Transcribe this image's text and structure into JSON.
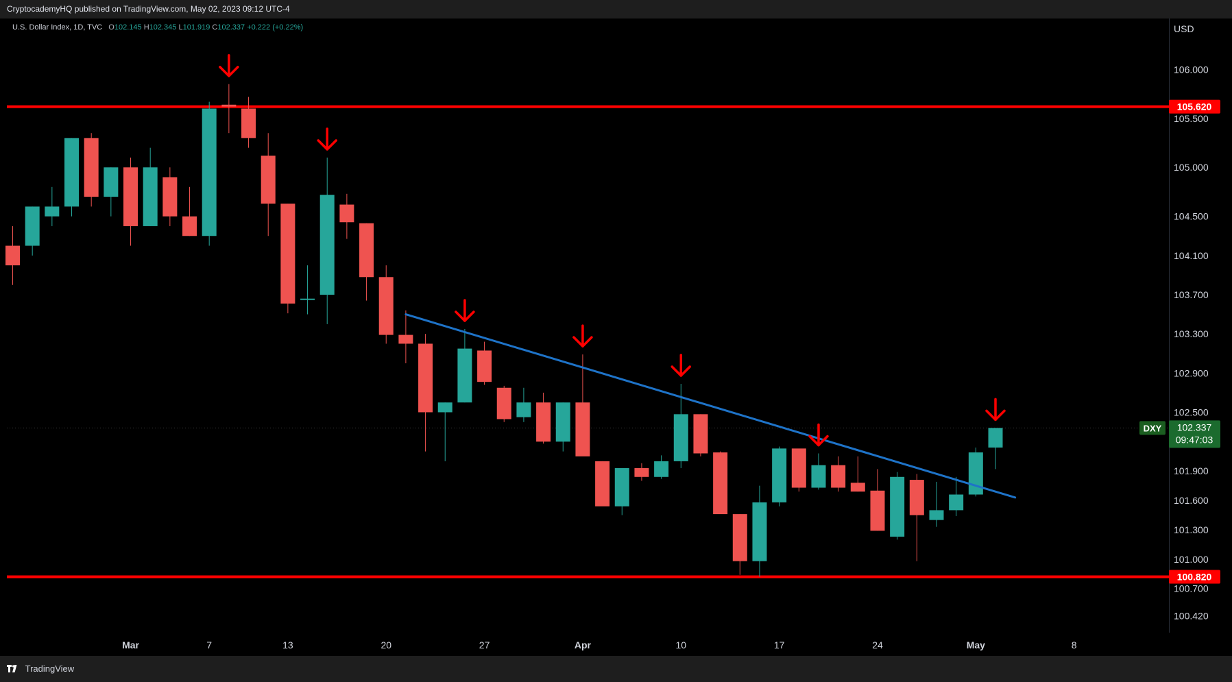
{
  "header": {
    "published": "CryptocademyHQ published on TradingView.com, May 02, 2023 09:12 UTC-4"
  },
  "legend": {
    "symbol": "U.S. Dollar Index, 1D, TVC",
    "open_label": "O",
    "open": "102.145",
    "high_label": "H",
    "high": "102.345",
    "low_label": "L",
    "low": "101.919",
    "close_label": "C",
    "close": "102.337",
    "change": "+0.222 (+0.22%)"
  },
  "footer": {
    "brand": "TradingView",
    "logo": "tv-logo-icon"
  },
  "colors": {
    "up": "#26a69a",
    "down": "#ef5350",
    "level": "#ff0000",
    "trend": "#1e73c8",
    "arrow": "#ff0000"
  },
  "chart_data": {
    "type": "candlestick",
    "currency": "USD",
    "ylim": [
      100.25,
      106.52
    ],
    "y_ticks": [
      106.0,
      105.5,
      105.0,
      104.5,
      104.1,
      103.7,
      103.3,
      102.9,
      102.5,
      101.9,
      101.6,
      101.3,
      101.0,
      100.7,
      100.42
    ],
    "y_tick_labels": [
      "106.000",
      "105.500",
      "105.000",
      "104.500",
      "104.100",
      "103.700",
      "103.300",
      "102.900",
      "102.500",
      "101.900",
      "101.600",
      "101.300",
      "101.000",
      "100.700",
      "100.420"
    ],
    "x_ticks": [
      {
        "label": "Mar",
        "index": 6
      },
      {
        "label": "7",
        "index": 10
      },
      {
        "label": "13",
        "index": 14
      },
      {
        "label": "20",
        "index": 19
      },
      {
        "label": "27",
        "index": 24
      },
      {
        "label": "Apr",
        "index": 29
      },
      {
        "label": "10",
        "index": 34
      },
      {
        "label": "17",
        "index": 39
      },
      {
        "label": "24",
        "index": 44
      },
      {
        "label": "May",
        "index": 49
      },
      {
        "label": "8",
        "index": 54
      }
    ],
    "candles": [
      [
        104.2,
        104.4,
        103.8,
        104.0
      ],
      [
        104.2,
        104.6,
        104.1,
        104.6
      ],
      [
        104.5,
        104.8,
        104.4,
        104.6
      ],
      [
        104.6,
        105.3,
        104.5,
        105.3
      ],
      [
        105.3,
        105.35,
        104.6,
        104.7
      ],
      [
        104.7,
        105.0,
        104.5,
        105.0
      ],
      [
        105.0,
        105.1,
        104.2,
        104.4
      ],
      [
        104.4,
        105.2,
        104.4,
        105.0
      ],
      [
        104.9,
        105.0,
        104.4,
        104.5
      ],
      [
        104.5,
        104.8,
        104.3,
        104.3
      ],
      [
        104.3,
        105.67,
        104.2,
        105.6
      ],
      [
        105.64,
        105.85,
        105.35,
        105.62
      ],
      [
        105.6,
        105.72,
        105.2,
        105.3
      ],
      [
        105.12,
        105.35,
        104.3,
        104.63
      ],
      [
        104.63,
        104.63,
        103.51,
        103.61
      ],
      [
        103.66,
        104.0,
        103.5,
        103.66
      ],
      [
        103.7,
        105.1,
        103.4,
        104.72
      ],
      [
        104.62,
        104.73,
        104.27,
        104.44
      ],
      [
        104.43,
        104.43,
        103.64,
        103.88
      ],
      [
        103.88,
        104.0,
        103.2,
        103.29
      ],
      [
        103.29,
        103.54,
        103.0,
        103.2
      ],
      [
        103.2,
        103.3,
        102.1,
        102.5
      ],
      [
        102.5,
        102.6,
        102.0,
        102.6
      ],
      [
        102.6,
        103.35,
        102.6,
        103.15
      ],
      [
        103.13,
        103.22,
        102.78,
        102.81
      ],
      [
        102.75,
        102.77,
        102.4,
        102.43
      ],
      [
        102.45,
        102.75,
        102.4,
        102.6
      ],
      [
        102.6,
        102.7,
        102.18,
        102.2
      ],
      [
        102.2,
        102.6,
        102.1,
        102.6
      ],
      [
        102.6,
        103.09,
        102.1,
        102.05
      ],
      [
        102.0,
        102.0,
        101.55,
        101.54
      ],
      [
        101.54,
        101.93,
        101.45,
        101.93
      ],
      [
        101.93,
        101.98,
        101.8,
        101.84
      ],
      [
        101.84,
        102.06,
        101.82,
        102.0
      ],
      [
        102.0,
        102.79,
        101.93,
        102.48
      ],
      [
        102.48,
        102.48,
        102.05,
        102.08
      ],
      [
        102.09,
        102.1,
        101.5,
        101.46
      ],
      [
        101.46,
        101.46,
        100.84,
        100.98
      ],
      [
        100.98,
        101.75,
        100.82,
        101.58
      ],
      [
        101.58,
        102.15,
        101.54,
        102.13
      ],
      [
        102.13,
        102.1,
        101.69,
        101.73
      ],
      [
        101.73,
        102.08,
        101.71,
        101.96
      ],
      [
        101.96,
        102.05,
        101.69,
        101.73
      ],
      [
        101.78,
        102.05,
        101.69,
        101.69
      ],
      [
        101.7,
        101.92,
        101.29,
        101.29
      ],
      [
        101.23,
        101.89,
        101.2,
        101.84
      ],
      [
        101.81,
        101.87,
        100.98,
        101.45
      ],
      [
        101.4,
        101.79,
        101.33,
        101.5
      ],
      [
        101.5,
        101.84,
        101.44,
        101.66
      ],
      [
        101.66,
        102.14,
        101.64,
        102.09
      ],
      [
        102.14,
        102.34,
        101.92,
        102.34
      ]
    ],
    "horizontal_levels": [
      {
        "value": 105.62,
        "label": "105.620"
      },
      {
        "value": 100.82,
        "label": "100.820"
      }
    ],
    "trendline": {
      "from": [
        20.0,
        103.5
      ],
      "to": [
        51.0,
        101.63
      ]
    },
    "markers": [
      {
        "index": 11,
        "type": "down-arrow"
      },
      {
        "index": 16,
        "type": "down-arrow"
      },
      {
        "index": 23,
        "type": "down-arrow"
      },
      {
        "index": 29,
        "type": "down-arrow"
      },
      {
        "index": 34,
        "type": "down-arrow"
      },
      {
        "index": 41,
        "type": "down-arrow"
      },
      {
        "index": 50,
        "type": "down-arrow"
      }
    ],
    "last_price": {
      "symbol": "DXY",
      "value": "102.337",
      "countdown": "09:47:03"
    }
  }
}
